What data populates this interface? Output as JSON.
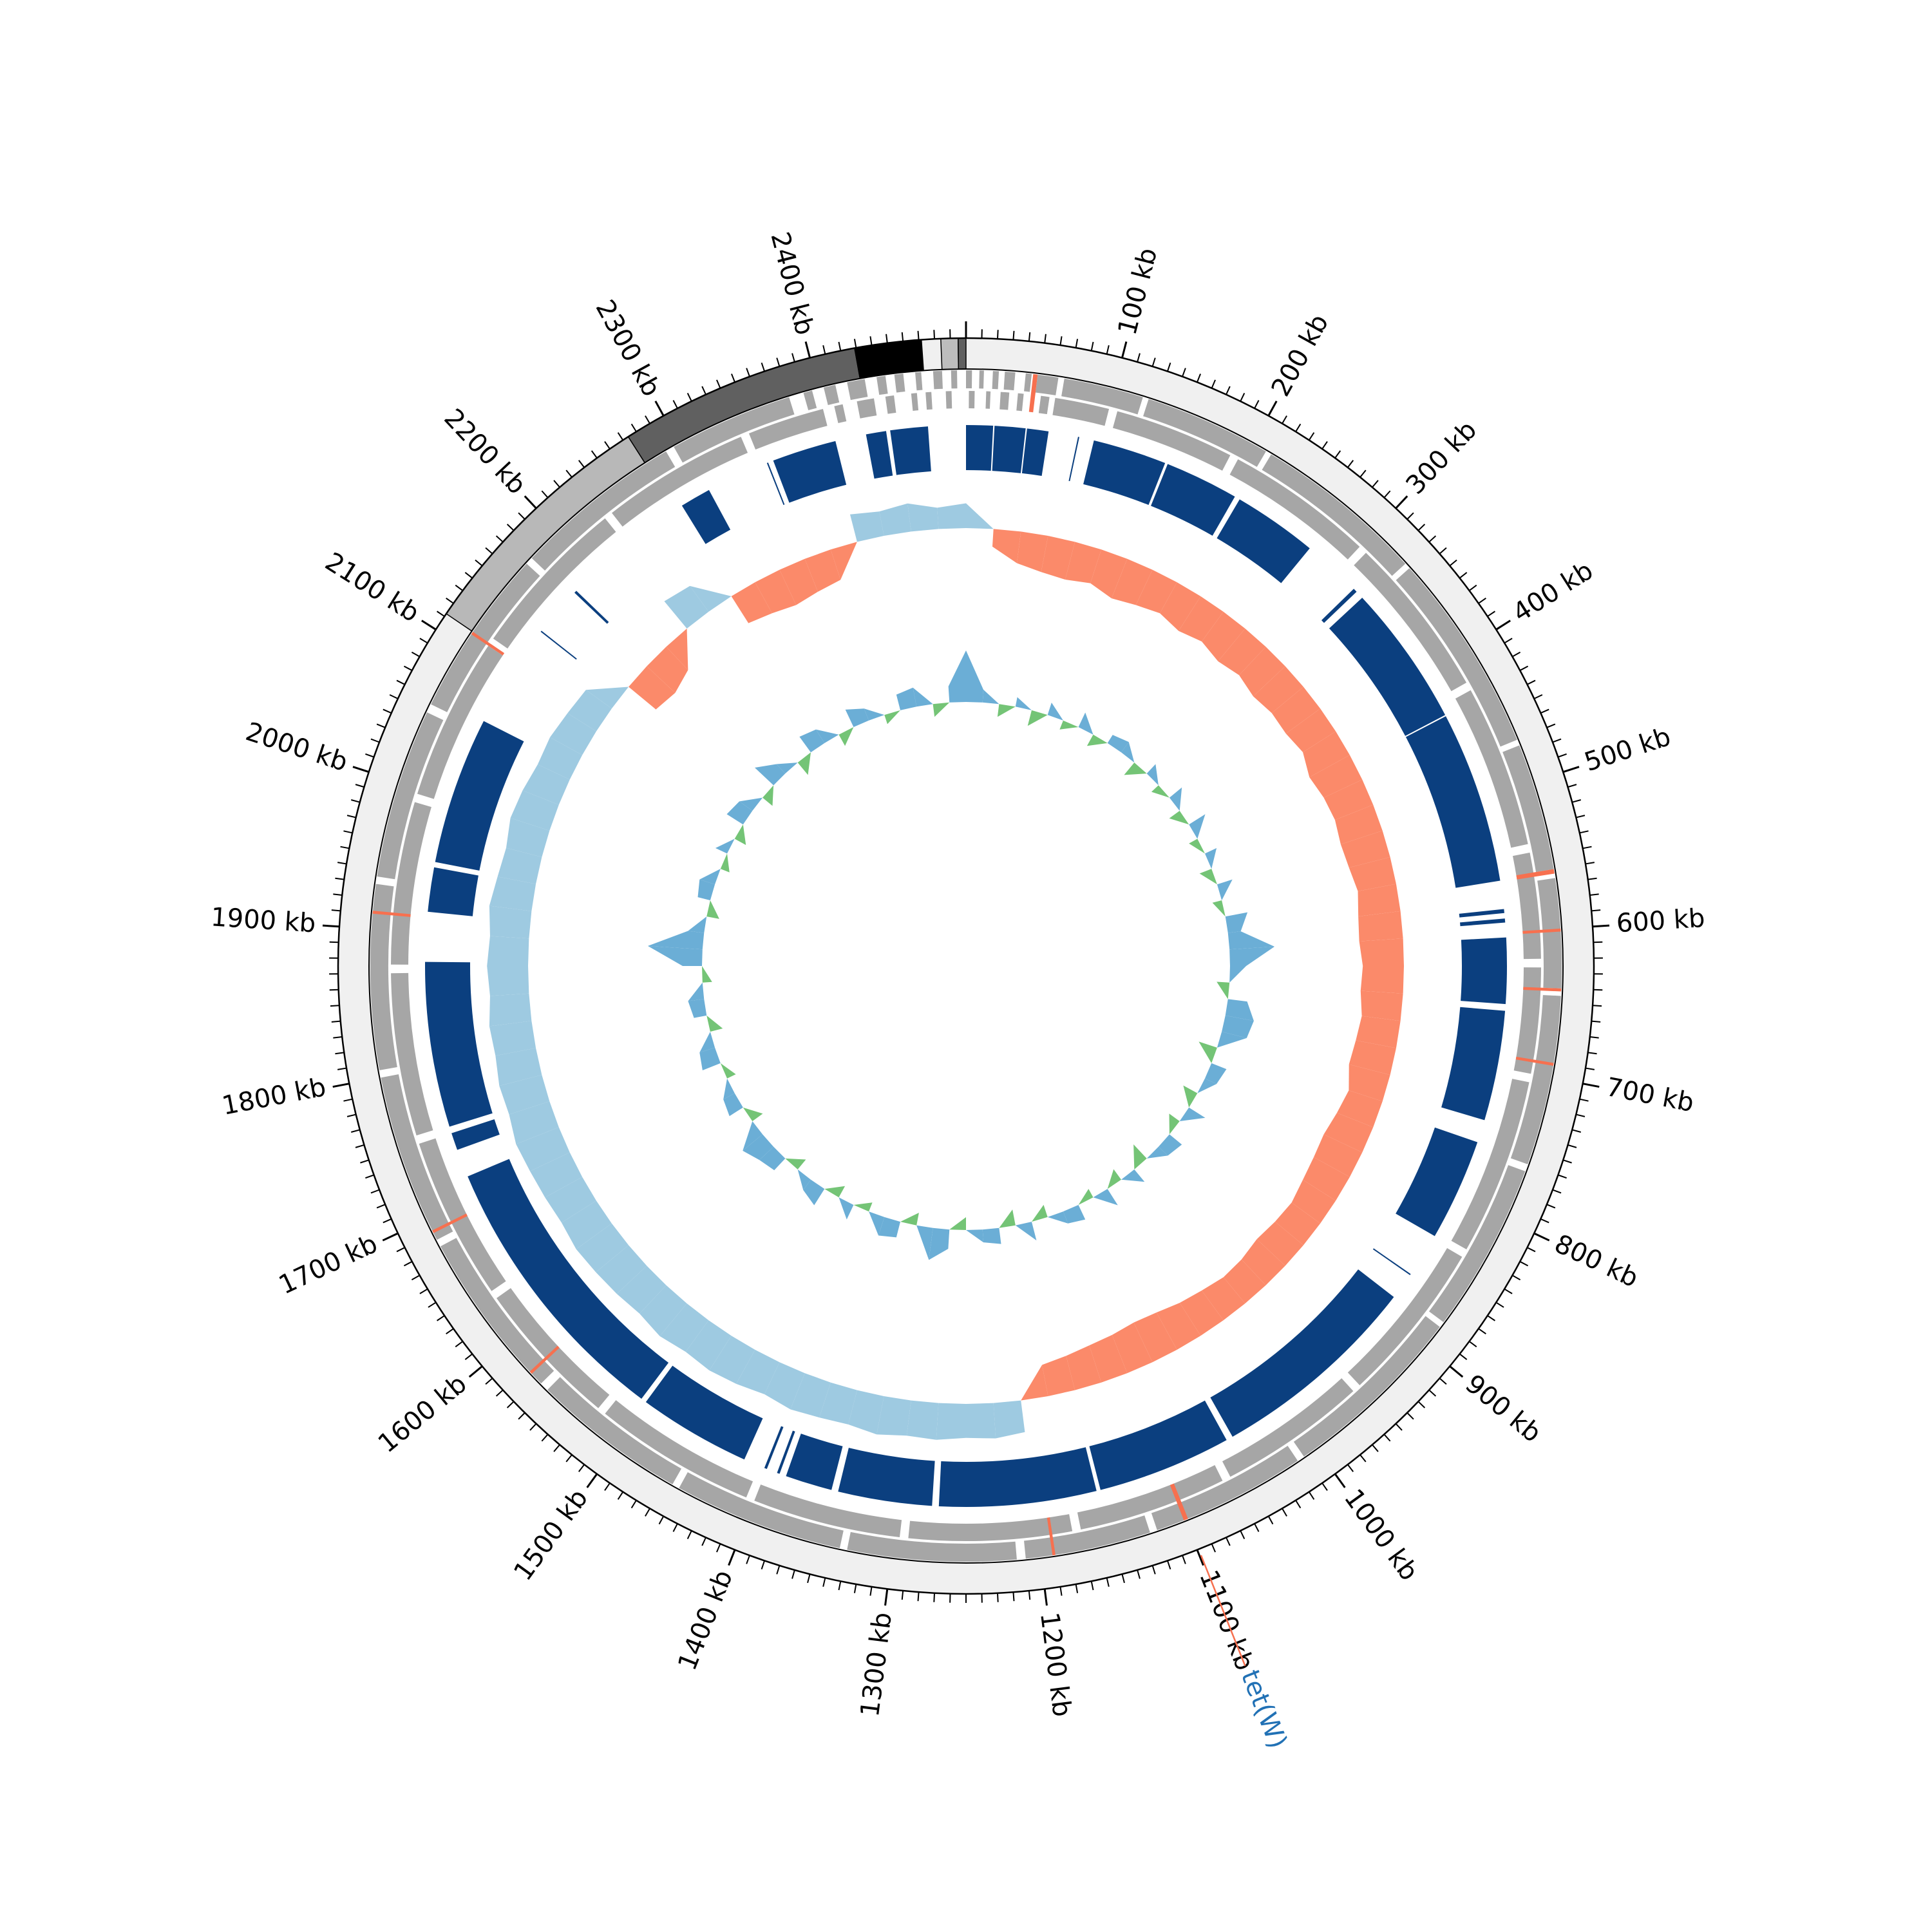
{
  "chart_data": {
    "type": "circular-genome",
    "genome_length_kb": 2500,
    "axis": {
      "unit": "kb",
      "major_tick_kb": 100,
      "minor_tick_kb": 10,
      "tick_labels": [
        "100 kb",
        "200 kb",
        "300 kb",
        "400 kb",
        "500 kb",
        "600 kb",
        "700 kb",
        "800 kb",
        "900 kb",
        "1000 kb",
        "1100 kb",
        "1200 kb",
        "1300 kb",
        "1400 kb",
        "1500 kb",
        "1600 kb",
        "1700 kb",
        "1800 kb",
        "1900 kb",
        "2000 kb",
        "2100 kb",
        "2200 kb",
        "2300 kb",
        "2400 kb"
      ]
    },
    "contigs": [
      {
        "start": 0,
        "end": 2112,
        "color": "#f0f0f0"
      },
      {
        "start": 2112,
        "end": 2274,
        "color": "#b8b8b8"
      },
      {
        "start": 2274,
        "end": 2429,
        "color": "#606060"
      },
      {
        "start": 2429,
        "end": 2472,
        "color": "#000000"
      },
      {
        "start": 2472,
        "end": 2484,
        "color": "#f0f0f0"
      },
      {
        "start": 2484,
        "end": 2495,
        "color": "#bdbdbd"
      },
      {
        "start": 2495,
        "end": 2500,
        "color": "#606060"
      }
    ],
    "genes_forward": [
      [
        0,
        4
      ],
      [
        9,
        12
      ],
      [
        18,
        22
      ],
      [
        26,
        33
      ],
      [
        40,
        44
      ],
      [
        48,
        62
      ],
      [
        66,
        120
      ],
      [
        124,
        210
      ],
      [
        214,
        330
      ],
      [
        334,
        470
      ],
      [
        474,
        560
      ],
      [
        566,
        640
      ],
      [
        645,
        760
      ],
      [
        765,
        880
      ],
      [
        884,
        1010
      ],
      [
        1015,
        1120
      ],
      [
        1125,
        1210
      ],
      [
        1216,
        1330
      ],
      [
        1335,
        1450
      ],
      [
        1455,
        1560
      ],
      [
        1566,
        1680
      ],
      [
        1685,
        1800
      ],
      [
        1805,
        1930
      ],
      [
        1935,
        2050
      ],
      [
        2056,
        2170
      ],
      [
        2175,
        2290
      ],
      [
        2296,
        2380
      ],
      [
        2390,
        2396
      ],
      [
        2404,
        2412
      ],
      [
        2420,
        2432
      ],
      [
        2440,
        2446
      ],
      [
        2452,
        2458
      ],
      [
        2466,
        2470
      ],
      [
        2478,
        2484
      ],
      [
        2490,
        2494
      ]
    ],
    "genes_reverse": [
      [
        2,
        6
      ],
      [
        14,
        17
      ],
      [
        24,
        30
      ],
      [
        36,
        40
      ],
      [
        52,
        58
      ],
      [
        62,
        100
      ],
      [
        106,
        190
      ],
      [
        196,
        300
      ],
      [
        306,
        420
      ],
      [
        426,
        540
      ],
      [
        546,
        620
      ],
      [
        626,
        700
      ],
      [
        706,
        830
      ],
      [
        836,
        950
      ],
      [
        956,
        1060
      ],
      [
        1066,
        1170
      ],
      [
        1176,
        1290
      ],
      [
        1296,
        1400
      ],
      [
        1406,
        1520
      ],
      [
        1526,
        1630
      ],
      [
        1636,
        1750
      ],
      [
        1756,
        1870
      ],
      [
        1876,
        1990
      ],
      [
        1996,
        2110
      ],
      [
        2116,
        2230
      ],
      [
        2236,
        2340
      ],
      [
        2346,
        2400
      ],
      [
        2408,
        2414
      ],
      [
        2424,
        2436
      ],
      [
        2444,
        2450
      ],
      [
        2462,
        2466
      ],
      [
        2472,
        2476
      ],
      [
        2486,
        2490
      ]
    ],
    "highlighted_genes": [
      [
        45,
        47
      ],
      [
        560,
        562
      ],
      [
        600,
        601
      ],
      [
        640,
        641
      ],
      [
        690,
        691
      ],
      [
        1098,
        1100
      ],
      [
        1190,
        1191
      ],
      [
        1575,
        1576
      ],
      [
        1690,
        1691
      ],
      [
        1910,
        1911
      ],
      [
        2110,
        2111
      ]
    ],
    "gene_colors": {
      "gene": "#a6a6a6",
      "highlight": "#f7704f"
    },
    "blocks": [
      [
        0,
        20
      ],
      [
        21,
        44
      ],
      [
        45,
        61
      ],
      [
        83,
        84
      ],
      [
        95,
        150
      ],
      [
        152,
        207
      ],
      [
        211,
        274
      ],
      [
        318,
        321
      ],
      [
        327,
        433
      ],
      [
        434,
        562
      ],
      [
        583,
        586
      ],
      [
        590,
        593
      ],
      [
        604,
        653
      ],
      [
        658,
        740
      ],
      [
        757,
        833
      ],
      [
        866,
        867
      ],
      [
        887,
        1045
      ],
      [
        1050,
        1150
      ],
      [
        1153,
        1270
      ],
      [
        1275,
        1345
      ],
      [
        1350,
        1385
      ],
      [
        1390,
        1392
      ],
      [
        1400,
        1402
      ],
      [
        1418,
        1502
      ],
      [
        1506,
        1716
      ],
      [
        1737,
        1750
      ],
      [
        1755,
        1878
      ],
      [
        1915,
        1948
      ],
      [
        1952,
        2062
      ],
      [
        2140,
        2141
      ],
      [
        2178,
        2180
      ],
      [
        2280,
        2303
      ],
      [
        2350,
        2351
      ],
      [
        2355,
        2403
      ],
      [
        2426,
        2441
      ],
      [
        2444,
        2472
      ]
    ],
    "block_color": "#0b3f7f",
    "window_kb": 25,
    "gc_skew": [
      -0.35,
      0.25,
      0.45,
      0.52,
      0.55,
      0.5,
      0.6,
      0.55,
      0.5,
      0.58,
      0.52,
      0.6,
      0.55,
      0.62,
      0.58,
      0.6,
      0.55,
      0.65,
      0.6,
      0.58,
      0.62,
      0.6,
      0.55,
      0.6,
      0.62,
      0.58,
      0.6,
      0.55,
      0.58,
      0.6,
      0.5,
      0.55,
      0.6,
      0.58,
      0.55,
      0.5,
      0.52,
      0.55,
      0.5,
      0.48,
      0.52,
      0.55,
      0.6,
      0.62,
      0.58,
      0.55,
      0.5,
      0.45,
      -0.45,
      -0.5,
      -0.48,
      -0.52,
      -0.5,
      -0.55,
      -0.5,
      -0.52,
      -0.55,
      -0.5,
      -0.55,
      -0.58,
      -0.55,
      -0.6,
      -0.55,
      -0.58,
      -0.6,
      -0.62,
      -0.58,
      -0.6,
      -0.62,
      -0.65,
      -0.6,
      -0.62,
      -0.58,
      -0.6,
      -0.55,
      -0.58,
      -0.55,
      -0.6,
      -0.55,
      -0.52,
      -0.58,
      -0.55,
      -0.5,
      -0.52,
      -0.48,
      -0.45,
      0.5,
      0.55,
      0.45,
      -0.5,
      -0.45,
      0.45,
      0.5,
      0.55,
      0.5,
      0.45,
      -0.4,
      -0.35,
      -0.4,
      -0.3
    ],
    "gc_skew_colors": {
      "positive": "#fb8a6a",
      "negative": "#9ecae1"
    },
    "gc_content": [
      0.8,
      0.2,
      -0.2,
      0.15,
      -0.25,
      0.2,
      -0.15,
      0.25,
      -0.2,
      0.15,
      0.2,
      -0.25,
      0.2,
      -0.15,
      0.25,
      -0.2,
      0.3,
      -0.15,
      0.2,
      -0.2,
      0.25,
      -0.15,
      0.35,
      0.2,
      0.7,
      0.25,
      -0.2,
      0.3,
      0.45,
      0.4,
      -0.3,
      0.25,
      0.2,
      -0.25,
      0.3,
      -0.2,
      0.25,
      0.2,
      -0.3,
      0.25,
      -0.2,
      0.3,
      -0.15,
      0.25,
      0.2,
      -0.2,
      0.3,
      -0.25,
      0.25,
      0.2,
      -0.2,
      0.3,
      0.5,
      -0.2,
      0.25,
      0.3,
      -0.15,
      0.25,
      -0.2,
      0.3,
      0.2,
      -0.2,
      0.25,
      0.3,
      0.4,
      -0.2,
      0.25,
      0.2,
      -0.15,
      0.3,
      0.25,
      -0.2,
      0.2,
      0.25,
      -0.15,
      0.3,
      0.85,
      0.25,
      -0.2,
      0.2,
      0.25,
      -0.15,
      0.2,
      -0.2,
      0.3,
      0.25,
      -0.2,
      0.4,
      0.2,
      -0.25,
      0.3,
      0.25,
      -0.2,
      0.3,
      0.2,
      -0.15,
      0.25,
      0.3,
      -0.2,
      0.25
    ],
    "gc_content_colors": {
      "positive": "#6baed6",
      "negative": "#74c476"
    },
    "annotations": [
      {
        "label": "tet(W)",
        "position_kb": 1099,
        "color": "#2171b5",
        "line_color": "#f7704f"
      }
    ]
  }
}
